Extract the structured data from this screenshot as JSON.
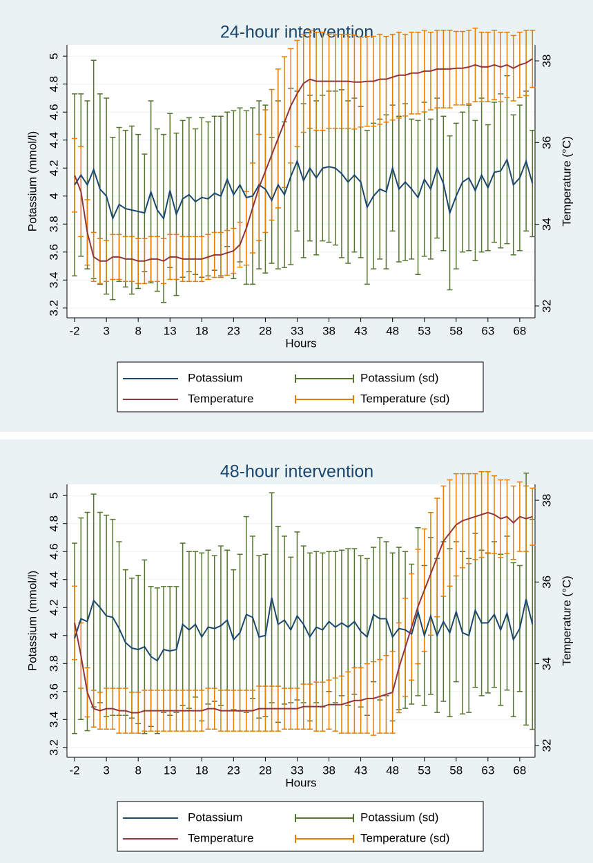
{
  "chart_data": [
    {
      "type": "line",
      "title": "24-hour intervention",
      "xlabel": "Hours",
      "ylabel": "Potassium (mmol/l)",
      "y2label": "Temperature (°C)",
      "x": [
        -2,
        -1,
        0,
        1,
        2,
        3,
        4,
        5,
        6,
        7,
        8,
        9,
        10,
        11,
        12,
        13,
        14,
        15,
        16,
        17,
        18,
        19,
        20,
        21,
        22,
        23,
        24,
        25,
        26,
        27,
        28,
        29,
        30,
        31,
        32,
        33,
        34,
        35,
        36,
        37,
        38,
        39,
        40,
        41,
        42,
        43,
        44,
        45,
        46,
        47,
        48,
        49,
        50,
        51,
        52,
        53,
        54,
        55,
        56,
        57,
        58,
        59,
        60,
        61,
        62,
        63,
        64,
        65,
        66,
        67,
        68,
        69,
        70
      ],
      "xlim": [
        -3.2,
        70.4
      ],
      "xticks": [
        -2,
        3,
        8,
        13,
        18,
        23,
        28,
        33,
        38,
        43,
        48,
        53,
        58,
        63,
        68
      ],
      "ylim": [
        3.13,
        5.08
      ],
      "yticks": [
        3.2,
        3.4,
        3.6,
        3.8,
        4,
        4.2,
        4.4,
        4.6,
        4.8,
        5
      ],
      "y2lim": [
        31.71,
        38.39
      ],
      "y2ticks": [
        32,
        34,
        36,
        38
      ],
      "grid": true,
      "series": [
        {
          "name": "Potassium",
          "color": "#1a476f",
          "values": [
            4.08,
            4.15,
            4.08,
            4.19,
            4.05,
            4.0,
            3.84,
            3.94,
            3.91,
            3.9,
            3.89,
            3.88,
            4.03,
            3.9,
            3.84,
            4.04,
            3.87,
            3.98,
            4.01,
            3.96,
            3.99,
            3.98,
            4.02,
            4.0,
            4.12,
            4.01,
            4.08,
            3.99,
            4.0,
            4.08,
            4.05,
            3.97,
            4.08,
            4.01,
            4.14,
            4.25,
            4.11,
            4.2,
            4.13,
            4.2,
            4.21,
            4.2,
            4.16,
            4.1,
            4.15,
            4.1,
            3.92,
            4.0,
            4.05,
            4.03,
            4.2,
            4.05,
            4.1,
            4.05,
            3.99,
            4.12,
            4.05,
            4.2,
            4.09,
            3.88,
            4.0,
            4.1,
            4.13,
            4.04,
            4.15,
            4.06,
            4.17,
            4.18,
            4.26,
            4.08,
            4.13,
            4.25,
            4.09
          ]
        },
        {
          "name": "Potassium (sd)",
          "type": "errorbar",
          "color": "#55752f",
          "values": [
            0.65,
            0.58,
            0.6,
            0.78,
            0.68,
            0.7,
            0.58,
            0.55,
            0.56,
            0.6,
            0.55,
            0.42,
            0.65,
            0.58,
            0.6,
            0.55,
            0.58,
            0.56,
            0.55,
            0.52,
            0.57,
            0.55,
            0.55,
            0.57,
            0.48,
            0.6,
            0.55,
            0.62,
            0.63,
            0.6,
            0.6,
            0.45,
            0.6,
            0.52,
            0.63,
            0.5,
            0.55,
            0.52,
            0.55,
            0.52,
            0.54,
            0.55,
            0.6,
            0.58,
            0.55,
            0.54,
            0.55,
            0.52,
            0.5,
            0.55,
            0.45,
            0.52,
            0.56,
            0.5,
            0.55,
            0.55,
            0.5,
            0.5,
            0.48,
            0.55,
            0.52,
            0.5,
            0.52,
            0.5,
            0.55,
            0.45,
            0.5,
            0.55,
            0.6,
            0.5,
            0.52,
            0.5,
            0.38
          ]
        },
        {
          "name": "Temperature",
          "color": "#90353b",
          "axis": "y2",
          "values": [
            35.2,
            34.8,
            33.8,
            33.2,
            33.1,
            33.1,
            33.2,
            33.2,
            33.15,
            33.15,
            33.1,
            33.1,
            33.15,
            33.15,
            33.1,
            33.2,
            33.2,
            33.15,
            33.15,
            33.15,
            33.15,
            33.2,
            33.25,
            33.25,
            33.3,
            33.35,
            33.5,
            33.9,
            34.4,
            34.9,
            35.3,
            35.7,
            36.1,
            36.5,
            36.9,
            37.2,
            37.45,
            37.55,
            37.5,
            37.5,
            37.5,
            37.5,
            37.5,
            37.5,
            37.48,
            37.48,
            37.5,
            37.5,
            37.55,
            37.55,
            37.6,
            37.65,
            37.65,
            37.7,
            37.7,
            37.75,
            37.75,
            37.8,
            37.8,
            37.8,
            37.82,
            37.82,
            37.85,
            37.9,
            37.85,
            37.85,
            37.9,
            37.85,
            37.9,
            37.82,
            37.9,
            37.95,
            38.05
          ]
        },
        {
          "name": "Temperature (sd)",
          "type": "errorbar",
          "color": "#e37e00",
          "axis": "y2",
          "values": [
            0.9,
            1.1,
            0.8,
            0.6,
            0.55,
            0.5,
            0.55,
            0.55,
            0.55,
            0.55,
            0.55,
            0.55,
            0.55,
            0.55,
            0.55,
            0.55,
            0.55,
            0.55,
            0.55,
            0.55,
            0.55,
            0.55,
            0.55,
            0.55,
            0.55,
            0.55,
            0.55,
            0.9,
            1.1,
            1.3,
            1.5,
            1.6,
            1.7,
            1.6,
            1.4,
            1.3,
            1.2,
            1.2,
            1.2,
            1.2,
            1.15,
            1.15,
            1.15,
            1.15,
            1.15,
            1.1,
            1.1,
            1.1,
            1.1,
            1.05,
            1.05,
            1.05,
            1.0,
            1.0,
            1.0,
            1.0,
            0.95,
            0.95,
            0.95,
            0.95,
            0.9,
            0.9,
            0.9,
            0.9,
            0.85,
            0.85,
            0.85,
            0.85,
            0.8,
            0.8,
            0.8,
            0.8,
            0.7
          ]
        }
      ]
    },
    {
      "type": "line",
      "title": "48-hour intervention",
      "xlabel": "Hours",
      "ylabel": "Potassium (mmol/l)",
      "y2label": "Temperature (°C)",
      "x": [
        -2,
        -1,
        0,
        1,
        2,
        3,
        4,
        5,
        6,
        7,
        8,
        9,
        10,
        11,
        12,
        13,
        14,
        15,
        16,
        17,
        18,
        19,
        20,
        21,
        22,
        23,
        24,
        25,
        26,
        27,
        28,
        29,
        30,
        31,
        32,
        33,
        34,
        35,
        36,
        37,
        38,
        39,
        40,
        41,
        42,
        43,
        44,
        45,
        46,
        47,
        48,
        49,
        50,
        51,
        52,
        53,
        54,
        55,
        56,
        57,
        58,
        59,
        60,
        61,
        62,
        63,
        64,
        65,
        66,
        67,
        68,
        69,
        70
      ],
      "xlim": [
        -3.2,
        70.4
      ],
      "xticks": [
        -2,
        3,
        8,
        13,
        18,
        23,
        28,
        33,
        38,
        43,
        48,
        53,
        58,
        63,
        68
      ],
      "ylim": [
        3.13,
        5.08
      ],
      "yticks": [
        3.2,
        3.4,
        3.6,
        3.8,
        4,
        4.2,
        4.4,
        4.6,
        4.8,
        5
      ],
      "y2lim": [
        31.71,
        38.39
      ],
      "y2ticks": [
        32,
        34,
        36,
        38
      ],
      "grid": true,
      "series": [
        {
          "name": "Potassium",
          "color": "#1a476f",
          "values": [
            3.98,
            4.12,
            4.1,
            4.25,
            4.2,
            4.14,
            4.13,
            4.05,
            3.95,
            3.91,
            3.9,
            3.92,
            3.85,
            3.82,
            3.9,
            3.89,
            3.9,
            4.08,
            4.04,
            4.08,
            3.99,
            4.06,
            4.05,
            4.07,
            4.11,
            3.97,
            4.02,
            4.15,
            4.13,
            3.99,
            4.0,
            4.27,
            4.08,
            4.11,
            4.04,
            4.14,
            4.08,
            3.99,
            4.06,
            4.04,
            4.1,
            4.06,
            4.09,
            4.06,
            4.1,
            4.03,
            3.99,
            4.15,
            4.12,
            4.12,
            3.99,
            4.05,
            4.04,
            4.01,
            4.17,
            4.0,
            4.14,
            4.0,
            4.1,
            4.02,
            4.17,
            4.02,
            4.0,
            4.18,
            4.09,
            4.09,
            4.15,
            4.04,
            4.16,
            3.97,
            4.05,
            4.26,
            4.08
          ]
        },
        {
          "name": "Potassium (sd)",
          "type": "errorbar",
          "color": "#55752f",
          "values": [
            0.68,
            0.72,
            0.78,
            0.76,
            0.68,
            0.72,
            0.7,
            0.62,
            0.52,
            0.5,
            0.53,
            0.62,
            0.5,
            0.52,
            0.45,
            0.46,
            0.45,
            0.58,
            0.56,
            0.52,
            0.6,
            0.55,
            0.52,
            0.57,
            0.5,
            0.5,
            0.56,
            0.7,
            0.58,
            0.58,
            0.58,
            0.75,
            0.7,
            0.6,
            0.52,
            0.6,
            0.56,
            0.6,
            0.54,
            0.55,
            0.5,
            0.54,
            0.52,
            0.56,
            0.52,
            0.54,
            0.56,
            0.48,
            0.58,
            0.55,
            0.6,
            0.58,
            0.56,
            0.5,
            0.6,
            0.5,
            0.56,
            0.55,
            0.57,
            0.6,
            0.5,
            0.58,
            0.55,
            0.55,
            0.52,
            0.5,
            0.52,
            0.54,
            0.55,
            0.55,
            0.45,
            0.9,
            0.75
          ]
        },
        {
          "name": "Temperature",
          "color": "#90353b",
          "axis": "y2",
          "values": [
            35.0,
            34.2,
            33.3,
            32.9,
            32.85,
            32.9,
            32.9,
            32.85,
            32.85,
            32.8,
            32.8,
            32.85,
            32.85,
            32.85,
            32.85,
            32.85,
            32.85,
            32.85,
            32.85,
            32.85,
            32.85,
            32.9,
            32.9,
            32.85,
            32.85,
            32.85,
            32.85,
            32.85,
            32.85,
            32.9,
            32.9,
            32.9,
            32.9,
            32.9,
            32.9,
            32.9,
            32.95,
            32.95,
            32.95,
            32.95,
            33.0,
            33.0,
            33.0,
            33.05,
            33.1,
            33.1,
            33.15,
            33.15,
            33.2,
            33.25,
            33.3,
            33.9,
            34.4,
            34.9,
            35.4,
            35.8,
            36.2,
            36.6,
            37.0,
            37.2,
            37.4,
            37.5,
            37.55,
            37.6,
            37.65,
            37.7,
            37.65,
            37.55,
            37.6,
            37.45,
            37.6,
            37.55,
            37.6
          ]
        },
        {
          "name": "Temperature (sd)",
          "type": "errorbar",
          "color": "#e37e00",
          "axis": "y2",
          "values": [
            0.9,
            0.8,
            0.6,
            0.45,
            0.45,
            0.5,
            0.5,
            0.55,
            0.55,
            0.5,
            0.5,
            0.5,
            0.5,
            0.5,
            0.5,
            0.5,
            0.5,
            0.5,
            0.5,
            0.5,
            0.5,
            0.5,
            0.5,
            0.5,
            0.5,
            0.5,
            0.5,
            0.5,
            0.5,
            0.55,
            0.55,
            0.55,
            0.55,
            0.5,
            0.5,
            0.5,
            0.55,
            0.55,
            0.6,
            0.6,
            0.6,
            0.65,
            0.7,
            0.75,
            0.8,
            0.8,
            0.85,
            0.9,
            0.9,
            0.95,
            1.0,
            1.1,
            1.2,
            1.3,
            1.4,
            1.5,
            1.5,
            1.45,
            1.35,
            1.3,
            1.25,
            1.15,
            1.1,
            1.05,
            1.05,
            1.0,
            0.95,
            0.95,
            0.9,
            0.9,
            0.85,
            0.8,
            0.7
          ]
        }
      ]
    }
  ]
}
